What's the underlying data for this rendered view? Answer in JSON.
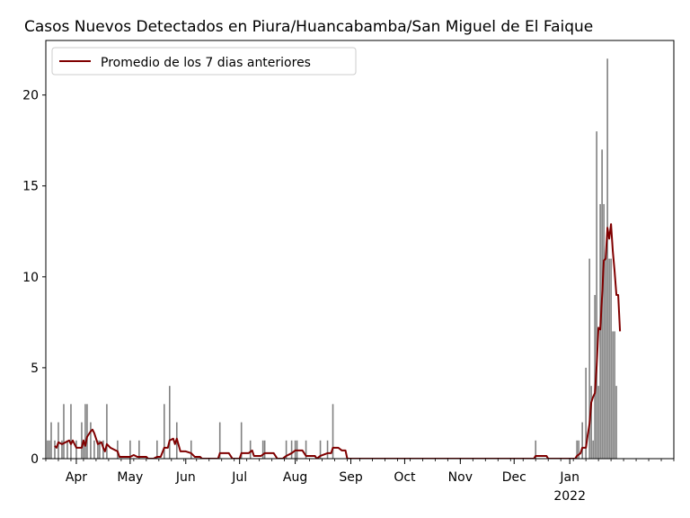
{
  "chart_data": {
    "type": "bar",
    "title": "Casos Nuevos Detectados en Piura/Huancabamba/San Miguel de El Faique",
    "xlabel": "",
    "ylabel": "",
    "ylim": [
      0,
      23
    ],
    "yticks": [
      0,
      5,
      10,
      15,
      20
    ],
    "x_start": "2021-03-15",
    "x_end": "2022-02-28",
    "xticks": [
      {
        "date": "2021-04-01",
        "label": "Apr"
      },
      {
        "date": "2021-05-01",
        "label": "May"
      },
      {
        "date": "2021-06-01",
        "label": "Jun"
      },
      {
        "date": "2021-07-01",
        "label": "Jul"
      },
      {
        "date": "2021-08-01",
        "label": "Aug"
      },
      {
        "date": "2021-09-01",
        "label": "Sep"
      },
      {
        "date": "2021-10-01",
        "label": "Oct"
      },
      {
        "date": "2021-11-01",
        "label": "Nov"
      },
      {
        "date": "2021-12-01",
        "label": "Dec"
      },
      {
        "date": "2022-01-01",
        "label": "Jan",
        "sublabel": "2022"
      }
    ],
    "bar_color": "#808080",
    "line_color": "#800000",
    "legend": {
      "position": "upper-left",
      "entries": [
        "Promedio de los 7 dias anteriores"
      ]
    },
    "bars": [
      [
        "2021-03-16",
        1
      ],
      [
        "2021-03-17",
        1
      ],
      [
        "2021-03-18",
        2
      ],
      [
        "2021-03-20",
        1
      ],
      [
        "2021-03-22",
        2
      ],
      [
        "2021-03-24",
        1
      ],
      [
        "2021-03-25",
        3
      ],
      [
        "2021-03-27",
        1
      ],
      [
        "2021-03-29",
        3
      ],
      [
        "2021-04-01",
        1
      ],
      [
        "2021-04-04",
        2
      ],
      [
        "2021-04-05",
        1
      ],
      [
        "2021-04-06",
        3
      ],
      [
        "2021-04-07",
        3
      ],
      [
        "2021-04-09",
        2
      ],
      [
        "2021-04-11",
        1
      ],
      [
        "2021-04-13",
        1
      ],
      [
        "2021-04-14",
        1
      ],
      [
        "2021-04-16",
        1
      ],
      [
        "2021-04-18",
        3
      ],
      [
        "2021-04-24",
        1
      ],
      [
        "2021-05-01",
        1
      ],
      [
        "2021-05-06",
        1
      ],
      [
        "2021-05-16",
        1
      ],
      [
        "2021-05-20",
        3
      ],
      [
        "2021-05-23",
        4
      ],
      [
        "2021-05-27",
        2
      ],
      [
        "2021-06-04",
        1
      ],
      [
        "2021-06-20",
        2
      ],
      [
        "2021-07-02",
        2
      ],
      [
        "2021-07-07",
        1
      ],
      [
        "2021-07-14",
        1
      ],
      [
        "2021-07-15",
        1
      ],
      [
        "2021-07-27",
        1
      ],
      [
        "2021-07-30",
        1
      ],
      [
        "2021-08-01",
        1
      ],
      [
        "2021-08-02",
        1
      ],
      [
        "2021-08-07",
        1
      ],
      [
        "2021-08-15",
        1
      ],
      [
        "2021-08-19",
        1
      ],
      [
        "2021-08-22",
        3
      ],
      [
        "2021-12-13",
        1
      ],
      [
        "2022-01-05",
        1
      ],
      [
        "2022-01-06",
        1
      ],
      [
        "2022-01-08",
        2
      ],
      [
        "2022-01-10",
        5
      ],
      [
        "2022-01-12",
        11
      ],
      [
        "2022-01-13",
        4
      ],
      [
        "2022-01-14",
        1
      ],
      [
        "2022-01-15",
        9
      ],
      [
        "2022-01-16",
        18
      ],
      [
        "2022-01-17",
        4
      ],
      [
        "2022-01-18",
        14
      ],
      [
        "2022-01-19",
        17
      ],
      [
        "2022-01-20",
        14
      ],
      [
        "2022-01-21",
        11
      ],
      [
        "2022-01-22",
        22
      ],
      [
        "2022-01-23",
        11
      ],
      [
        "2022-01-24",
        11
      ],
      [
        "2022-01-25",
        7
      ],
      [
        "2022-01-26",
        7
      ],
      [
        "2022-01-27",
        4
      ]
    ],
    "line_series": {
      "name": "Promedio de los 7 dias anteriores",
      "points": [
        [
          "2021-03-20",
          0.7
        ],
        [
          "2021-03-21",
          0.6
        ],
        [
          "2021-03-22",
          0.9
        ],
        [
          "2021-03-24",
          0.8
        ],
        [
          "2021-03-26",
          0.9
        ],
        [
          "2021-03-28",
          1.0
        ],
        [
          "2021-03-29",
          0.8
        ],
        [
          "2021-03-30",
          1.0
        ],
        [
          "2021-04-01",
          0.6
        ],
        [
          "2021-04-04",
          0.6
        ],
        [
          "2021-04-05",
          1.0
        ],
        [
          "2021-04-06",
          0.7
        ],
        [
          "2021-04-07",
          1.2
        ],
        [
          "2021-04-09",
          1.5
        ],
        [
          "2021-04-10",
          1.6
        ],
        [
          "2021-04-11",
          1.4
        ],
        [
          "2021-04-13",
          0.8
        ],
        [
          "2021-04-15",
          0.9
        ],
        [
          "2021-04-16",
          0.6
        ],
        [
          "2021-04-17",
          0.4
        ],
        [
          "2021-04-18",
          0.8
        ],
        [
          "2021-04-20",
          0.6
        ],
        [
          "2021-04-22",
          0.5
        ],
        [
          "2021-04-24",
          0.4
        ],
        [
          "2021-04-25",
          0.1
        ],
        [
          "2021-04-28",
          0.1
        ],
        [
          "2021-05-01",
          0.1
        ],
        [
          "2021-05-03",
          0.2
        ],
        [
          "2021-05-05",
          0.1
        ],
        [
          "2021-05-10",
          0.1
        ],
        [
          "2021-05-11",
          0.0
        ],
        [
          "2021-05-14",
          0.0
        ],
        [
          "2021-05-16",
          0.1
        ],
        [
          "2021-05-18",
          0.1
        ],
        [
          "2021-05-20",
          0.6
        ],
        [
          "2021-05-22",
          0.6
        ],
        [
          "2021-05-23",
          1.0
        ],
        [
          "2021-05-25",
          1.1
        ],
        [
          "2021-05-26",
          0.8
        ],
        [
          "2021-05-27",
          1.1
        ],
        [
          "2021-05-29",
          0.4
        ],
        [
          "2021-06-01",
          0.4
        ],
        [
          "2021-06-04",
          0.3
        ],
        [
          "2021-06-06",
          0.1
        ],
        [
          "2021-06-09",
          0.1
        ],
        [
          "2021-06-10",
          0.0
        ],
        [
          "2021-06-19",
          0.0
        ],
        [
          "2021-06-20",
          0.3
        ],
        [
          "2021-06-25",
          0.3
        ],
        [
          "2021-06-27",
          0.0
        ],
        [
          "2021-07-01",
          0.0
        ],
        [
          "2021-07-02",
          0.3
        ],
        [
          "2021-07-06",
          0.3
        ],
        [
          "2021-07-08",
          0.45
        ],
        [
          "2021-07-09",
          0.15
        ],
        [
          "2021-07-13",
          0.15
        ],
        [
          "2021-07-15",
          0.3
        ],
        [
          "2021-07-20",
          0.3
        ],
        [
          "2021-07-22",
          0.0
        ],
        [
          "2021-07-25",
          0.0
        ],
        [
          "2021-07-27",
          0.15
        ],
        [
          "2021-07-30",
          0.3
        ],
        [
          "2021-08-01",
          0.45
        ],
        [
          "2021-08-05",
          0.45
        ],
        [
          "2021-08-07",
          0.15
        ],
        [
          "2021-08-12",
          0.15
        ],
        [
          "2021-08-13",
          0.0
        ],
        [
          "2021-08-15",
          0.15
        ],
        [
          "2021-08-19",
          0.3
        ],
        [
          "2021-08-21",
          0.3
        ],
        [
          "2021-08-22",
          0.6
        ],
        [
          "2021-08-25",
          0.6
        ],
        [
          "2021-08-27",
          0.45
        ],
        [
          "2021-08-29",
          0.45
        ],
        [
          "2021-08-30",
          0.0
        ],
        [
          "2021-12-12",
          0.0
        ],
        [
          "2021-12-13",
          0.15
        ],
        [
          "2021-12-19",
          0.15
        ],
        [
          "2021-12-20",
          0.0
        ],
        [
          "2022-01-04",
          0.0
        ],
        [
          "2022-01-05",
          0.15
        ],
        [
          "2022-01-07",
          0.3
        ],
        [
          "2022-01-08",
          0.6
        ],
        [
          "2022-01-10",
          0.6
        ],
        [
          "2022-01-11",
          1.3
        ],
        [
          "2022-01-12",
          1.9
        ],
        [
          "2022-01-13",
          3.1
        ],
        [
          "2022-01-14",
          3.4
        ],
        [
          "2022-01-15",
          3.6
        ],
        [
          "2022-01-16",
          5.1
        ],
        [
          "2022-01-17",
          7.2
        ],
        [
          "2022-01-18",
          7.1
        ],
        [
          "2022-01-19",
          8.9
        ],
        [
          "2022-01-20",
          10.9
        ],
        [
          "2022-01-21",
          11.0
        ],
        [
          "2022-01-22",
          12.7
        ],
        [
          "2022-01-23",
          12.1
        ],
        [
          "2022-01-24",
          12.9
        ],
        [
          "2022-01-25",
          11.4
        ],
        [
          "2022-01-26",
          10.3
        ],
        [
          "2022-01-27",
          9.0
        ],
        [
          "2022-01-28",
          9.0
        ],
        [
          "2022-01-29",
          7.0
        ]
      ]
    }
  }
}
